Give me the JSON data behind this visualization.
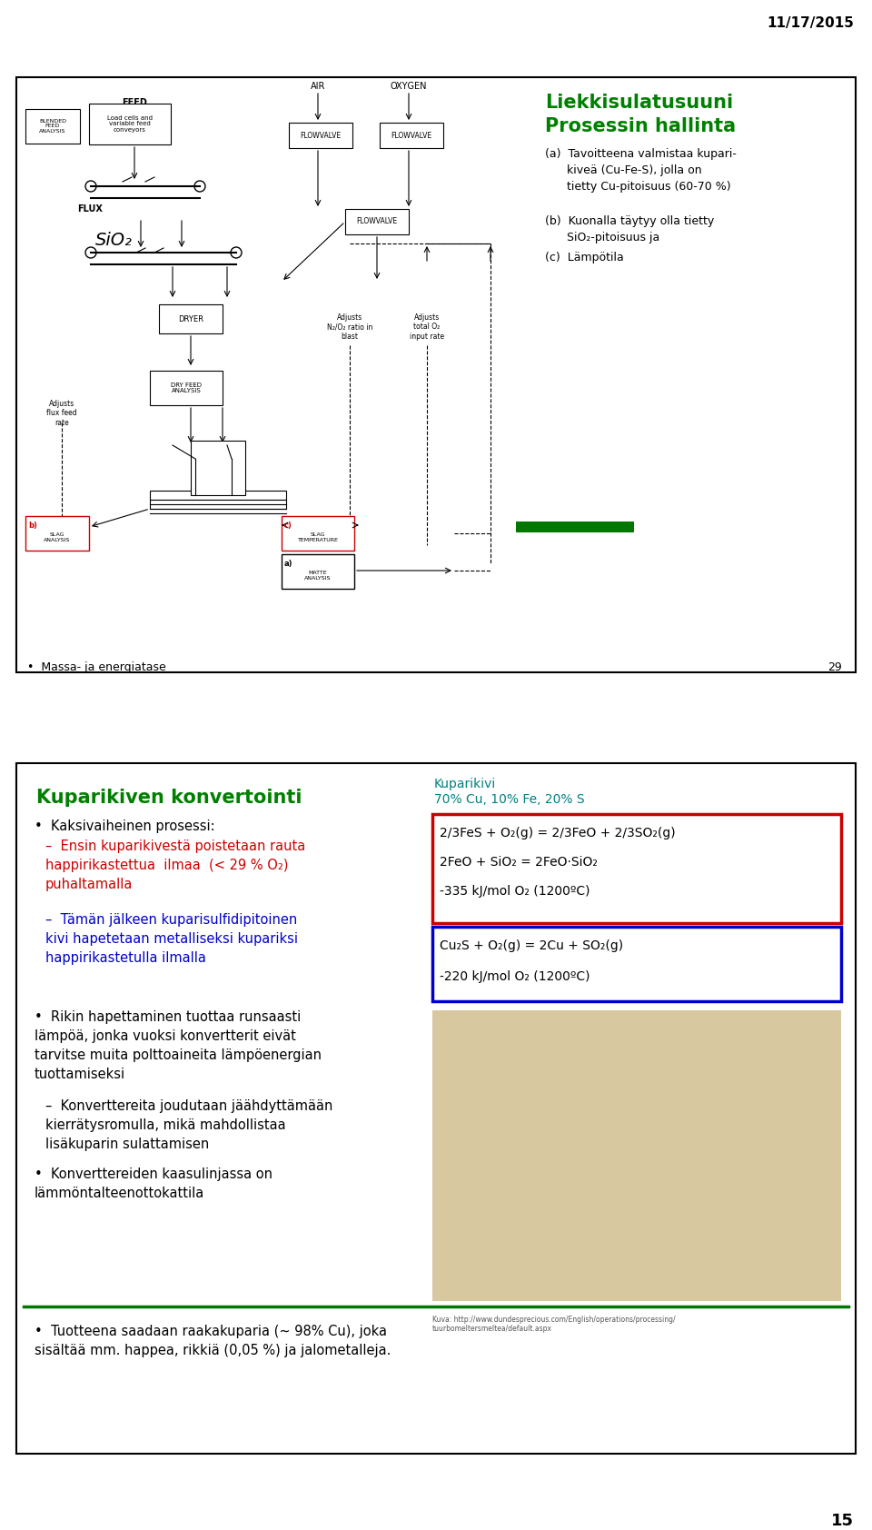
{
  "bg_color": "#ffffff",
  "date_text": "11/17/2015",
  "page_num": "15",
  "title1": "Liekkisulatusuuni",
  "title2": "Prosessin hallinta",
  "title_color": "#008000",
  "proc_a": "(a)  Tavoitteena valmistaa kupari-\n      kiveä (Cu-Fe-S), jolla on\n      tietty Cu-pitoisuus (60-70 %)",
  "proc_b": "(b)  Kuonalla täytyy olla tietty\n      SiO₂-pitoisuus ja",
  "proc_c": "(c)  Lämpötila",
  "bottom_title": "Kuparikiven konvertointi",
  "bottom_title_color": "#008000",
  "kuparikivi_label": "Kuparikivi",
  "kuparikivi_sub": "70% Cu, 10% Fe, 20% S",
  "kuparikivi_color": "#008080",
  "bullet1": "Kaksivaiheinen prosessi:",
  "sub1_text": "Ensin kuparikivestä poistetaan rauta\nhappirikastettua  ilmaa  (< 29 % O₂)\npuhaltamalla",
  "sub1_color": "#cc0000",
  "sub2_text": "Tämän jälkeen kuparisulfidipitoinen\nkivi hapetetaan metalliseksi kupariksi\nhappirikastetulla ilmalla",
  "sub2_color": "#0000cc",
  "box1_line1": "2/3FeS + O₂(g) = 2/3FeO + 2/3SO₂(g)",
  "box1_line2": "2FeO + SiO₂ = 2FeO·SiO₂",
  "box1_line3": "-335 kJ/mol O₂ (1200ºC)",
  "box1_color": "#cc0000",
  "box2_line1": "Cu₂S + O₂(g) = 2Cu + SO₂(g)",
  "box2_line2": "-220 kJ/mol O₂ (1200ºC)",
  "box2_color": "#0000cc",
  "bullet2_text": "Rikin hapettaminen tuottaa runsaasti\nlämpöä, jonka vuoksi konvertterit eivät\ntarvitse muita polttoaineita lämpöenergian\ntuottamiseksi",
  "sub3_text": "Konverttereita joudutaan jäähdyttämään\nkierrätysromulla, mikä mahdollistaa\nlisäkuparin sulattamisen",
  "bullet3_text": "Konverttereiden kaasulinjassa on\nlämmöntalteenottokattila",
  "bullet4_text": "Tuotteena saadaan raakakuparia (~ 98% Cu), joka\nsisältää mm. happea, rikkiä (0,05 %) ja jalometalleja.",
  "massa_text": "•  Massa- ja energiatase",
  "kuva_url": "Kuva: http://www.dundesprecious.com/English/operations/processing/\ntuurbomeltersmeltea/default.aspx"
}
